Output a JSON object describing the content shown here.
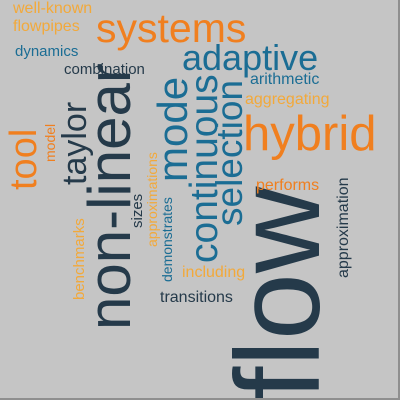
{
  "palette": {
    "orange": "#f07f1f",
    "yellow": "#f2a93b",
    "blue": "#1b6d94",
    "dark": "#253a4a",
    "background": "#c5c5c5"
  },
  "words": [
    {
      "text": "systems",
      "color": "orange"
    },
    {
      "text": "adaptive",
      "color": "blue"
    },
    {
      "text": "hybrid",
      "color": "orange"
    },
    {
      "text": "flow",
      "color": "dark"
    },
    {
      "text": "non-linear",
      "color": "dark"
    },
    {
      "text": "mode",
      "color": "blue"
    },
    {
      "text": "continuous",
      "color": "blue"
    },
    {
      "text": "selection",
      "color": "blue"
    },
    {
      "text": "tool",
      "color": "orange"
    },
    {
      "text": "taylor",
      "color": "dark"
    },
    {
      "text": "well-known",
      "color": "yellow"
    },
    {
      "text": "flowpipes",
      "color": "yellow"
    },
    {
      "text": "dynamics",
      "color": "blue"
    },
    {
      "text": "combination",
      "color": "dark"
    },
    {
      "text": "arithmetic",
      "color": "blue"
    },
    {
      "text": "aggregating",
      "color": "yellow"
    },
    {
      "text": "performs",
      "color": "orange"
    },
    {
      "text": "approximation",
      "color": "dark"
    },
    {
      "text": "including",
      "color": "yellow"
    },
    {
      "text": "transitions",
      "color": "dark"
    },
    {
      "text": "benchmarks",
      "color": "yellow"
    },
    {
      "text": "model",
      "color": "orange"
    },
    {
      "text": "sizes",
      "color": "dark"
    },
    {
      "text": "approximations",
      "color": "yellow"
    },
    {
      "text": "demonstrates",
      "color": "blue"
    }
  ]
}
